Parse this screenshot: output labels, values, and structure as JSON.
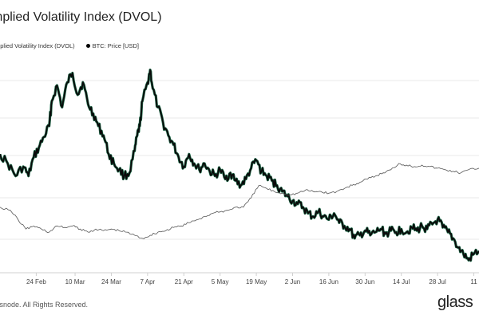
{
  "title": "mplied Volatility Index (DVOL)",
  "legend": [
    {
      "label": "mplied Volatility Index (DVOL)",
      "color": "#555555"
    },
    {
      "label": "BTC: Price [USD]",
      "color": "#000000"
    }
  ],
  "footer": "lassnode. All Rights Reserved.",
  "brand": "glass",
  "colors": {
    "price_line": "#0a0a0a",
    "price_candle_up": "#1f6b4a",
    "dvol_line": "#555555",
    "grid": "#e8e8e8",
    "axis": "#d0d0d0"
  },
  "chart_data": {
    "type": "line",
    "title": "mplied Volatility Index (DVOL)",
    "x_ticks": [
      "24 Feb",
      "10 Mar",
      "24 Mar",
      "7 Apr",
      "21 Apr",
      "5 May",
      "19 May",
      "2 Jun",
      "16 Jun",
      "30 Jun",
      "14 Jul",
      "28 Jul",
      "11"
    ],
    "grid": true,
    "series": [
      {
        "name": "BTC: Price [USD]",
        "role": "price",
        "points": [
          [
            "2024-02-10",
            0.44
          ],
          [
            "2024-02-13",
            0.38
          ],
          [
            "2024-02-16",
            0.3
          ],
          [
            "2024-02-19",
            0.36
          ],
          [
            "2024-02-21",
            0.3
          ],
          [
            "2024-02-23",
            0.42
          ],
          [
            "2024-02-25",
            0.48
          ],
          [
            "2024-02-27",
            0.55
          ],
          [
            "2024-02-29",
            0.62
          ],
          [
            "2024-03-01",
            0.78
          ],
          [
            "2024-03-03",
            0.88
          ],
          [
            "2024-03-05",
            0.74
          ],
          [
            "2024-03-07",
            0.9
          ],
          [
            "2024-03-09",
            0.96
          ],
          [
            "2024-03-11",
            0.82
          ],
          [
            "2024-03-13",
            0.9
          ],
          [
            "2024-03-15",
            0.76
          ],
          [
            "2024-03-17",
            0.7
          ],
          [
            "2024-03-19",
            0.62
          ],
          [
            "2024-03-21",
            0.56
          ],
          [
            "2024-03-23",
            0.44
          ],
          [
            "2024-03-25",
            0.38
          ],
          [
            "2024-03-27",
            0.34
          ],
          [
            "2024-03-29",
            0.3
          ],
          [
            "2024-03-31",
            0.32
          ],
          [
            "2024-04-02",
            0.46
          ],
          [
            "2024-04-03",
            0.56
          ],
          [
            "2024-04-04",
            0.62
          ],
          [
            "2024-04-05",
            0.78
          ],
          [
            "2024-04-07",
            0.9
          ],
          [
            "2024-04-08",
            0.98
          ],
          [
            "2024-04-09",
            0.86
          ],
          [
            "2024-04-11",
            0.74
          ],
          [
            "2024-04-13",
            0.64
          ],
          [
            "2024-04-15",
            0.56
          ],
          [
            "2024-04-17",
            0.5
          ],
          [
            "2024-04-19",
            0.42
          ],
          [
            "2024-04-21",
            0.36
          ],
          [
            "2024-04-23",
            0.44
          ],
          [
            "2024-04-25",
            0.38
          ],
          [
            "2024-04-27",
            0.34
          ],
          [
            "2024-04-29",
            0.38
          ],
          [
            "2024-05-01",
            0.33
          ],
          [
            "2024-05-03",
            0.3
          ],
          [
            "2024-05-05",
            0.34
          ],
          [
            "2024-05-07",
            0.28
          ],
          [
            "2024-05-09",
            0.32
          ],
          [
            "2024-05-11",
            0.27
          ],
          [
            "2024-05-13",
            0.24
          ],
          [
            "2024-05-15",
            0.28
          ],
          [
            "2024-05-17",
            0.35
          ],
          [
            "2024-05-19",
            0.4
          ],
          [
            "2024-05-21",
            0.33
          ],
          [
            "2024-05-23",
            0.3
          ],
          [
            "2024-05-25",
            0.27
          ],
          [
            "2024-05-27",
            0.24
          ],
          [
            "2024-05-29",
            0.2
          ],
          [
            "2024-05-31",
            0.17
          ],
          [
            "2024-06-02",
            0.14
          ],
          [
            "2024-06-04",
            0.12
          ],
          [
            "2024-06-06",
            0.1
          ],
          [
            "2024-06-08",
            0.06
          ],
          [
            "2024-06-10",
            0.04
          ],
          [
            "2024-06-12",
            0.07
          ],
          [
            "2024-06-14",
            0.04
          ],
          [
            "2024-06-16",
            0.02
          ],
          [
            "2024-06-18",
            0.06
          ],
          [
            "2024-06-20",
            0.0
          ],
          [
            "2024-06-22",
            -0.02
          ],
          [
            "2024-06-24",
            -0.04
          ],
          [
            "2024-06-26",
            -0.1
          ],
          [
            "2024-06-28",
            -0.08
          ],
          [
            "2024-06-30",
            -0.05
          ],
          [
            "2024-07-02",
            -0.08
          ],
          [
            "2024-07-04",
            -0.06
          ],
          [
            "2024-07-06",
            -0.04
          ],
          [
            "2024-07-08",
            -0.07
          ],
          [
            "2024-07-10",
            -0.05
          ],
          [
            "2024-07-12",
            -0.06
          ],
          [
            "2024-07-14",
            -0.04
          ],
          [
            "2024-07-16",
            -0.06
          ],
          [
            "2024-07-18",
            -0.03
          ],
          [
            "2024-07-20",
            -0.05
          ],
          [
            "2024-07-22",
            -0.02
          ],
          [
            "2024-07-24",
            -0.04
          ],
          [
            "2024-07-26",
            -0.01
          ],
          [
            "2024-07-28",
            0.02
          ],
          [
            "2024-07-30",
            -0.03
          ],
          [
            "2024-08-01",
            -0.06
          ],
          [
            "2024-08-03",
            -0.1
          ],
          [
            "2024-08-05",
            -0.16
          ],
          [
            "2024-08-07",
            -0.2
          ],
          [
            "2024-08-09",
            -0.24
          ],
          [
            "2024-08-11",
            -0.2
          ],
          [
            "2024-08-13",
            -0.18
          ]
        ]
      },
      {
        "name": "mplied Volatility Index (DVOL)",
        "role": "dvol",
        "points": [
          [
            "2024-02-10",
            0.1
          ],
          [
            "2024-02-14",
            0.08
          ],
          [
            "2024-02-17",
            0.02
          ],
          [
            "2024-02-20",
            -0.04
          ],
          [
            "2024-02-23",
            -0.02
          ],
          [
            "2024-02-26",
            -0.04
          ],
          [
            "2024-02-29",
            -0.06
          ],
          [
            "2024-03-03",
            -0.02
          ],
          [
            "2024-03-06",
            -0.03
          ],
          [
            "2024-03-09",
            -0.02
          ],
          [
            "2024-03-12",
            -0.04
          ],
          [
            "2024-03-15",
            -0.06
          ],
          [
            "2024-03-18",
            -0.04
          ],
          [
            "2024-03-21",
            -0.05
          ],
          [
            "2024-03-24",
            -0.04
          ],
          [
            "2024-03-27",
            -0.05
          ],
          [
            "2024-03-30",
            -0.06
          ],
          [
            "2024-04-02",
            -0.08
          ],
          [
            "2024-04-05",
            -0.1
          ],
          [
            "2024-04-08",
            -0.08
          ],
          [
            "2024-04-11",
            -0.06
          ],
          [
            "2024-04-14",
            -0.05
          ],
          [
            "2024-04-17",
            -0.03
          ],
          [
            "2024-04-20",
            -0.02
          ],
          [
            "2024-04-23",
            0.0
          ],
          [
            "2024-04-26",
            0.02
          ],
          [
            "2024-04-29",
            0.04
          ],
          [
            "2024-05-02",
            0.06
          ],
          [
            "2024-05-05",
            0.07
          ],
          [
            "2024-05-08",
            0.08
          ],
          [
            "2024-05-11",
            0.1
          ],
          [
            "2024-05-14",
            0.1
          ],
          [
            "2024-05-17",
            0.16
          ],
          [
            "2024-05-20",
            0.24
          ],
          [
            "2024-05-23",
            0.22
          ],
          [
            "2024-05-26",
            0.2
          ],
          [
            "2024-05-29",
            0.19
          ],
          [
            "2024-06-01",
            0.18
          ],
          [
            "2024-06-04",
            0.19
          ],
          [
            "2024-06-07",
            0.21
          ],
          [
            "2024-06-10",
            0.2
          ],
          [
            "2024-06-13",
            0.2
          ],
          [
            "2024-06-16",
            0.19
          ],
          [
            "2024-06-19",
            0.2
          ],
          [
            "2024-06-22",
            0.22
          ],
          [
            "2024-06-25",
            0.24
          ],
          [
            "2024-06-28",
            0.26
          ],
          [
            "2024-07-01",
            0.28
          ],
          [
            "2024-07-04",
            0.3
          ],
          [
            "2024-07-07",
            0.32
          ],
          [
            "2024-07-10",
            0.34
          ],
          [
            "2024-07-13",
            0.38
          ],
          [
            "2024-07-16",
            0.37
          ],
          [
            "2024-07-19",
            0.36
          ],
          [
            "2024-07-22",
            0.37
          ],
          [
            "2024-07-25",
            0.36
          ],
          [
            "2024-07-28",
            0.35
          ],
          [
            "2024-07-31",
            0.34
          ],
          [
            "2024-08-03",
            0.33
          ],
          [
            "2024-08-06",
            0.32
          ],
          [
            "2024-08-09",
            0.34
          ],
          [
            "2024-08-13",
            0.35
          ]
        ]
      }
    ]
  }
}
